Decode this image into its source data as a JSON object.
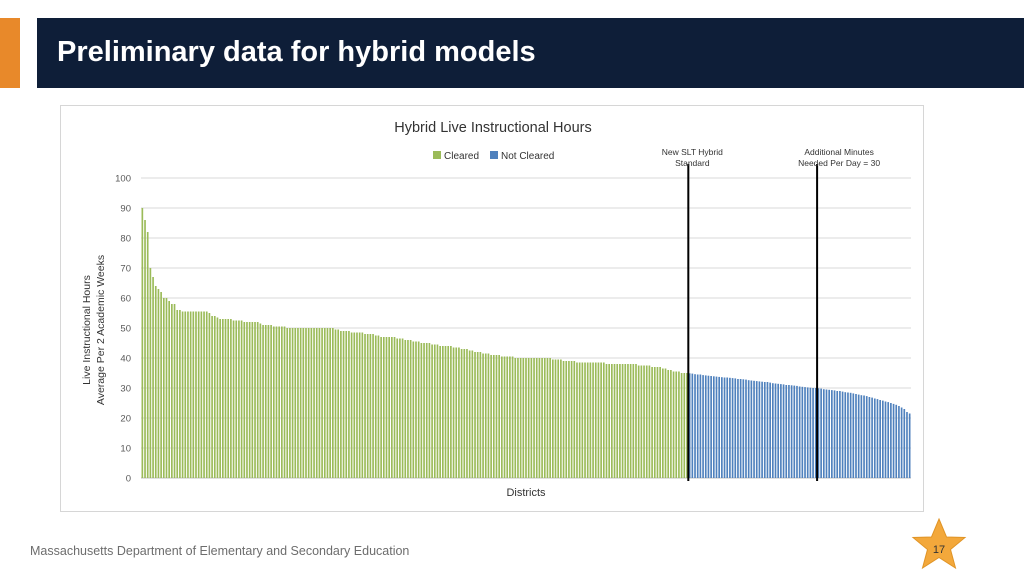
{
  "slide": {
    "title": "Preliminary data for hybrid models",
    "footer": "Massachusetts Department of Elementary and Secondary Education",
    "page_number": "17"
  },
  "colors": {
    "title_band": "#0e1e38",
    "accent": "#e8892a",
    "cleared": "#9bbb59",
    "not_cleared": "#4f81bd",
    "star": "#f3a83b"
  },
  "chart_data": {
    "type": "bar",
    "title": "Hybrid Live Instructional Hours",
    "xlabel": "Districts",
    "ylabel": [
      "Live Instructional Hours",
      "Average Per 2 Academic Weeks"
    ],
    "ylim": [
      0,
      100
    ],
    "yticks": [
      0,
      10,
      20,
      30,
      40,
      50,
      60,
      70,
      80,
      90,
      100
    ],
    "grid": true,
    "legend": {
      "position": "top-center",
      "entries": [
        "Cleared",
        "Not Cleared"
      ]
    },
    "threshold": 35,
    "series": [
      {
        "name": "Cleared",
        "values": [
          90,
          86,
          82,
          70,
          67,
          64,
          63,
          62,
          60,
          60,
          59,
          58,
          58,
          56,
          56,
          55.5,
          55.5,
          55.5,
          55.5,
          55.5,
          55.5,
          55.5,
          55.5,
          55.5,
          55.5,
          55,
          54,
          54,
          53.5,
          53,
          53,
          53,
          53,
          53,
          52.5,
          52.5,
          52.5,
          52.5,
          52,
          52,
          52,
          52,
          52,
          52,
          51.5,
          51,
          51,
          51,
          51,
          50.5,
          50.5,
          50.5,
          50.5,
          50.5,
          50,
          50,
          50,
          50,
          50,
          50,
          50,
          50,
          50,
          50,
          50,
          50,
          50,
          50,
          50,
          50,
          50,
          50,
          49.5,
          49.5,
          49,
          49,
          49,
          49,
          48.5,
          48.5,
          48.5,
          48.5,
          48.5,
          48,
          48,
          48,
          48,
          47.5,
          47.5,
          47,
          47,
          47,
          47,
          47,
          47,
          46.5,
          46.5,
          46.5,
          46,
          46,
          46,
          45.5,
          45.5,
          45.5,
          45,
          45,
          45,
          45,
          44.5,
          44.5,
          44.5,
          44,
          44,
          44,
          44,
          44,
          43.5,
          43.5,
          43.5,
          43,
          43,
          43,
          42.5,
          42.5,
          42,
          42,
          42,
          41.5,
          41.5,
          41.5,
          41,
          41,
          41,
          41,
          40.5,
          40.5,
          40.5,
          40.5,
          40.5,
          40,
          40,
          40,
          40,
          40,
          40,
          40,
          40,
          40,
          40,
          40,
          40,
          40,
          40,
          39.5,
          39.5,
          39.5,
          39.5,
          39,
          39,
          39,
          39,
          39,
          38.5,
          38.5,
          38.5,
          38.5,
          38.5,
          38.5,
          38.5,
          38.5,
          38.5,
          38.5,
          38.5,
          38,
          38,
          38,
          38,
          38,
          38,
          38,
          38,
          38,
          38,
          38,
          38,
          37.5,
          37.5,
          37.5,
          37.5,
          37.5,
          37,
          37,
          37,
          37,
          36.5,
          36.5,
          36,
          36,
          35.5,
          35.5,
          35.5,
          35,
          35,
          35
        ]
      },
      {
        "name": "Not Cleared",
        "values": [
          34.9,
          34.8,
          34.6,
          34.5,
          34.5,
          34.3,
          34.2,
          34.1,
          34,
          33.9,
          33.8,
          33.7,
          33.6,
          33.5,
          33.5,
          33.4,
          33.3,
          33.2,
          33,
          33,
          32.9,
          32.8,
          32.6,
          32.5,
          32.4,
          32.3,
          32.2,
          32.1,
          32,
          32,
          31.8,
          31.6,
          31.5,
          31.4,
          31.3,
          31.2,
          31,
          31,
          30.9,
          30.8,
          30.7,
          30.5,
          30.4,
          30.3,
          30.2,
          30.1,
          30,
          30,
          29.9,
          29.8,
          29.6,
          29.5,
          29.4,
          29.3,
          29.2,
          29,
          29,
          28.8,
          28.6,
          28.5,
          28.4,
          28.2,
          28,
          27.8,
          27.6,
          27.5,
          27.3,
          27,
          26.8,
          26.5,
          26.3,
          26,
          25.8,
          25.5,
          25.3,
          25,
          24.7,
          24.4,
          24,
          23.5,
          23,
          22,
          21.5
        ]
      }
    ],
    "annotations": [
      {
        "lines": [
          "New SLT Hybrid",
          "Standard"
        ],
        "marker": "vertical-line"
      },
      {
        "lines": [
          "Additional Minutes",
          "Needed Per Day = 30"
        ],
        "marker": "vertical-line",
        "y_value": 30
      }
    ]
  }
}
